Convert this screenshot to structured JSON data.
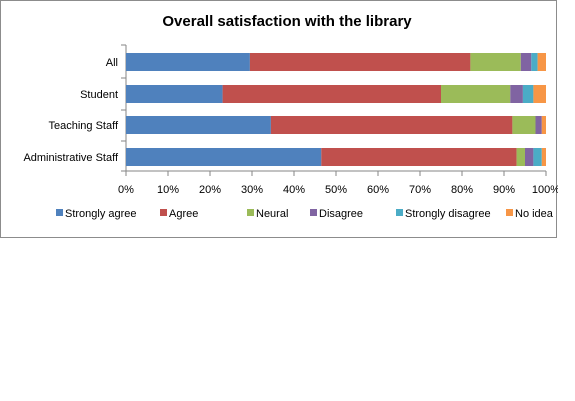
{
  "chart_data": {
    "type": "bar",
    "orientation": "horizontal",
    "stacked": true,
    "percent_stacked": true,
    "title": "Overall satisfaction with the library",
    "categories": [
      "All",
      "Student",
      "Teaching Staff",
      "Administrative Staff"
    ],
    "series": [
      {
        "name": "Strongly agree",
        "color": "#4f81bd",
        "values": [
          29.5,
          23,
          34.5,
          46.5
        ]
      },
      {
        "name": "Agree",
        "color": "#c0504d",
        "values": [
          52.5,
          52,
          57.5,
          46.5
        ]
      },
      {
        "name": "Neural",
        "color": "#9bbb59",
        "values": [
          12,
          16.5,
          5.5,
          2
        ]
      },
      {
        "name": "Disagree",
        "color": "#8064a2",
        "values": [
          2.5,
          3,
          1.5,
          2
        ]
      },
      {
        "name": "Strongly disagree",
        "color": "#4bacc6",
        "values": [
          1.5,
          2.5,
          0,
          2
        ]
      },
      {
        "name": "No idea",
        "color": "#f79646",
        "values": [
          2,
          3,
          1,
          1
        ]
      }
    ],
    "x_ticks": [
      "0%",
      "10%",
      "20%",
      "30%",
      "40%",
      "50%",
      "60%",
      "70%",
      "80%",
      "90%",
      "100%"
    ],
    "xlim": [
      0,
      100
    ],
    "grid": false,
    "legend_position": "bottom"
  }
}
